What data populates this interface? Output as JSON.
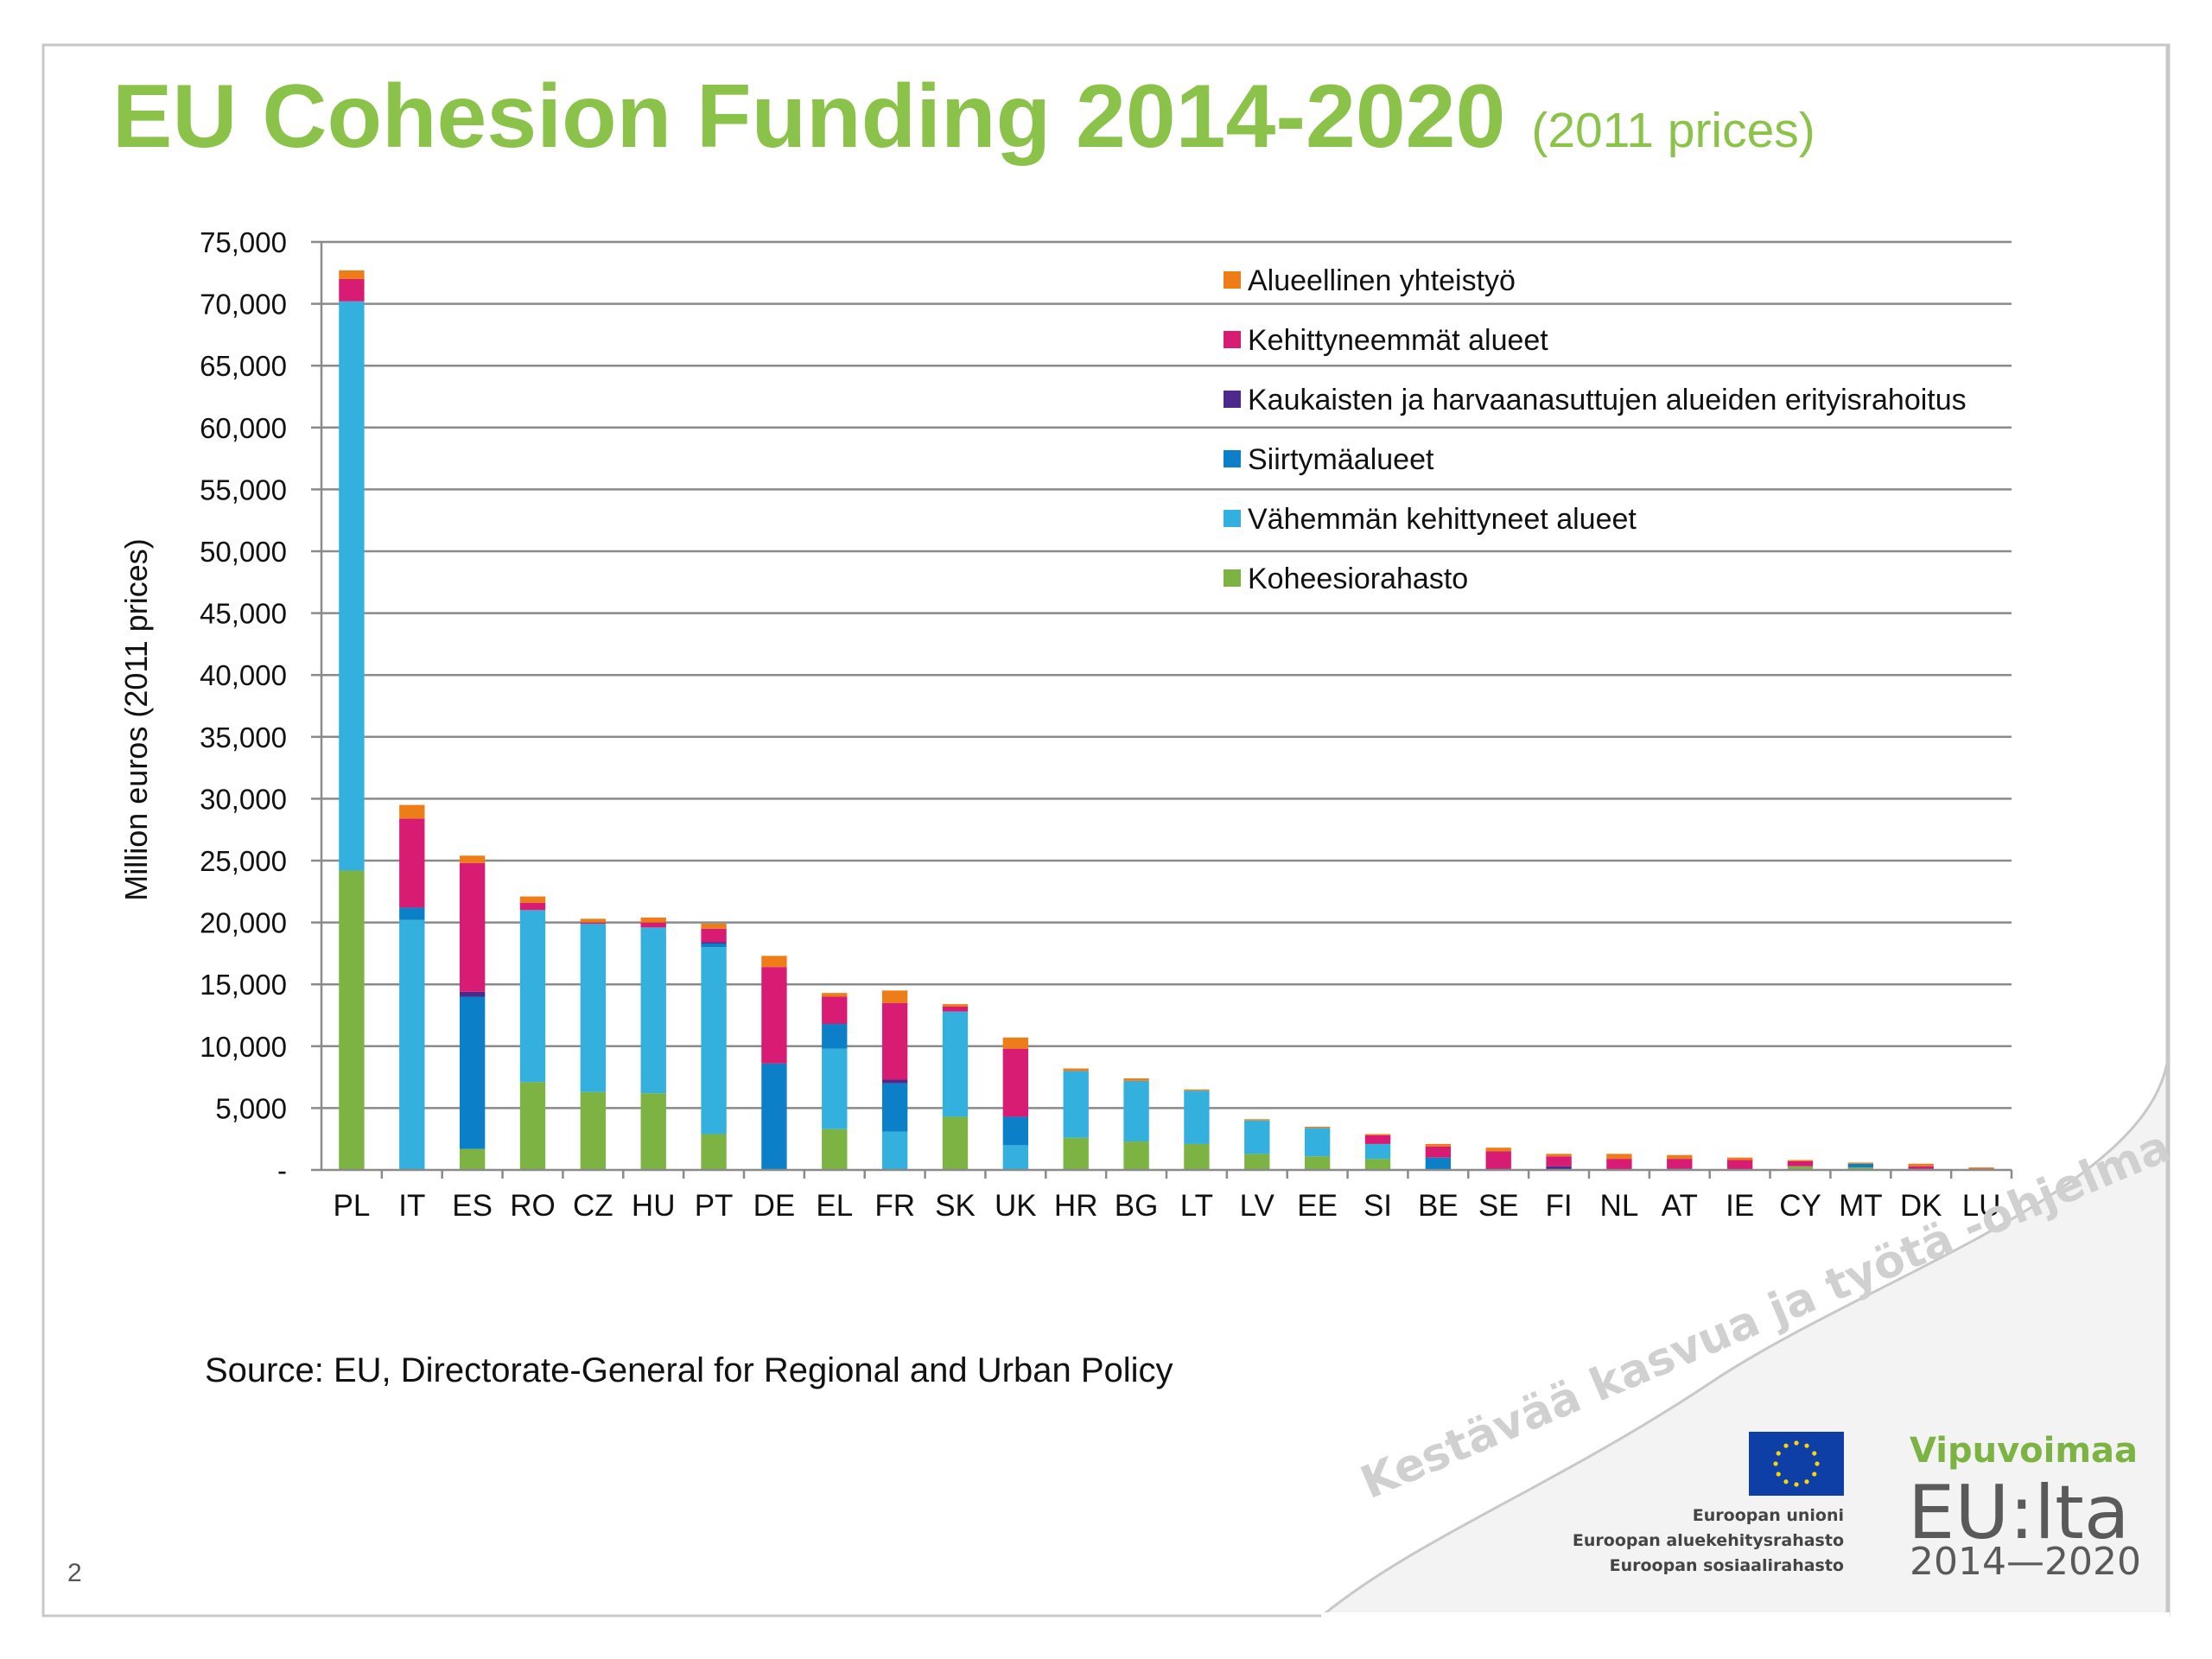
{
  "title": {
    "main": "EU Cohesion Funding 2014-2020",
    "sub": "(2011 prices)"
  },
  "source": "Source: EU, Directorate-General for Regional and Urban Policy",
  "page_number": "2",
  "slogan": "Kestävää kasvua ja työtä -ohjelma",
  "logos": {
    "eu_lines": [
      "Euroopan unioni",
      "Euroopan aluekehitysrahasto",
      "Euroopan sosiaalirahasto"
    ],
    "vipuvoimaa_top": "Vipuvoimaa",
    "vipuvoimaa_mid": "EU:lta",
    "vipuvoimaa_bottom": "2014—2020"
  },
  "chart_data": {
    "type": "bar",
    "stacked": true,
    "ylabel": "Million euros (2011 prices)",
    "ylim": [
      0,
      75000
    ],
    "ytick_step": 5000,
    "ytick_labels": [
      "-",
      "5,000",
      "10,000",
      "15,000",
      "20,000",
      "25,000",
      "30,000",
      "35,000",
      "40,000",
      "45,000",
      "50,000",
      "55,000",
      "60,000",
      "65,000",
      "70,000",
      "75,000"
    ],
    "grid": true,
    "legend_position": "top-right",
    "categories": [
      "PL",
      "IT",
      "ES",
      "RO",
      "CZ",
      "HU",
      "PT",
      "DE",
      "EL",
      "FR",
      "SK",
      "UK",
      "HR",
      "BG",
      "LT",
      "LV",
      "EE",
      "SI",
      "BE",
      "SE",
      "FI",
      "NL",
      "AT",
      "IE",
      "CY",
      "MT",
      "DK",
      "LU"
    ],
    "series": [
      {
        "name": "Koheesiorahasto",
        "color": "#7cb342",
        "values": [
          24200,
          0,
          1700,
          7100,
          6300,
          6200,
          2900,
          0,
          3300,
          0,
          4300,
          0,
          2600,
          2300,
          2100,
          1300,
          1100,
          900,
          0,
          0,
          0,
          0,
          0,
          0,
          300,
          200,
          0,
          0
        ]
      },
      {
        "name": "Vähemmän kehittyneet alueet",
        "color": "#33b0dd",
        "values": [
          46000,
          20200,
          0,
          13900,
          13600,
          13400,
          15100,
          0,
          6500,
          3100,
          8500,
          2000,
          5400,
          4900,
          4300,
          2700,
          2300,
          1200,
          0,
          0,
          0,
          0,
          0,
          0,
          0,
          0,
          0,
          0
        ]
      },
      {
        "name": "Siirtymäalueet",
        "color": "#0b7fc7",
        "values": [
          0,
          1000,
          12300,
          0,
          0,
          0,
          300,
          8600,
          2000,
          3900,
          0,
          2300,
          0,
          0,
          0,
          0,
          0,
          0,
          1000,
          0,
          0,
          0,
          100,
          0,
          0,
          300,
          100,
          0
        ]
      },
      {
        "name": "Kaukaisten ja harvaanasuttujen alueiden erityisrahoitus",
        "color": "#4b2a8c",
        "values": [
          0,
          0,
          400,
          0,
          0,
          0,
          100,
          0,
          0,
          300,
          0,
          0,
          0,
          0,
          0,
          0,
          0,
          0,
          0,
          100,
          300,
          0,
          0,
          0,
          0,
          0,
          0,
          0
        ]
      },
      {
        "name": "Kehittyneemmät alueet",
        "color": "#d81b73",
        "values": [
          1800,
          7200,
          10400,
          600,
          100,
          400,
          1100,
          7800,
          2200,
          6200,
          400,
          5500,
          0,
          0,
          0,
          0,
          0,
          700,
          900,
          1400,
          800,
          900,
          800,
          800,
          400,
          0,
          200,
          100
        ]
      },
      {
        "name": "Alueellinen yhteistyö",
        "color": "#ef7d17",
        "values": [
          700,
          1100,
          600,
          500,
          300,
          400,
          400,
          900,
          300,
          1000,
          200,
          900,
          200,
          200,
          100,
          100,
          100,
          100,
          200,
          300,
          200,
          400,
          300,
          200,
          100,
          100,
          200,
          100
        ]
      }
    ]
  }
}
